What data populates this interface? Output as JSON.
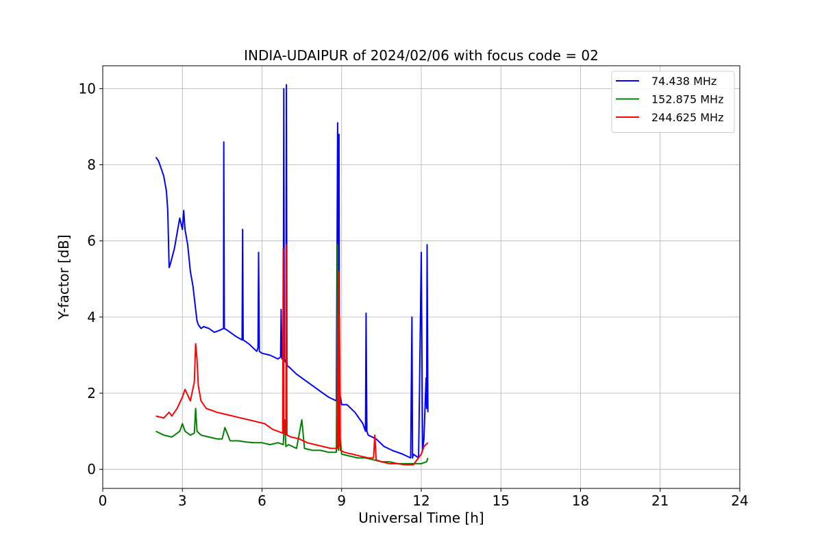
{
  "chart_data": {
    "type": "line",
    "title": "INDIA-UDAIPUR of 2024/02/06 with focus code = 02",
    "xlabel": "Universal Time [h]",
    "ylabel": "Y-factor [dB]",
    "xlim": [
      0,
      24
    ],
    "ylim": [
      -0.5,
      10.6
    ],
    "x_ticks": [
      0,
      3,
      6,
      9,
      12,
      15,
      18,
      21,
      24
    ],
    "y_ticks": [
      0,
      2,
      4,
      6,
      8,
      10
    ],
    "grid": true,
    "legend_position": "top-right",
    "series": [
      {
        "name": " 74.438 MHz",
        "color": "#0000ff",
        "x": [
          2.0,
          2.1,
          2.2,
          2.3,
          2.4,
          2.45,
          2.5,
          2.55,
          2.7,
          2.8,
          2.9,
          3.0,
          3.05,
          3.1,
          3.2,
          3.3,
          3.4,
          3.5,
          3.55,
          3.6,
          3.7,
          3.8,
          4.0,
          4.2,
          4.4,
          4.55,
          4.56,
          4.58,
          4.7,
          5.0,
          5.25,
          5.27,
          5.29,
          5.5,
          5.8,
          5.85,
          5.87,
          5.9,
          6.0,
          6.3,
          6.6,
          6.7,
          6.72,
          6.75,
          6.8,
          6.82,
          6.84,
          6.86,
          6.9,
          6.92,
          6.94,
          6.96,
          7.0,
          7.3,
          7.6,
          7.9,
          8.2,
          8.5,
          8.8,
          8.85,
          8.88,
          8.9,
          8.92,
          8.95,
          9.0,
          9.2,
          9.5,
          9.8,
          9.9,
          9.92,
          9.95,
          10.0,
          10.3,
          10.6,
          10.9,
          11.3,
          11.6,
          11.65,
          11.67,
          11.7,
          11.9,
          12.0,
          12.05,
          12.1,
          12.15,
          12.18,
          12.2,
          12.22,
          12.25
        ],
        "y": [
          8.2,
          8.1,
          7.9,
          7.7,
          7.3,
          6.8,
          5.3,
          5.4,
          5.8,
          6.2,
          6.6,
          6.3,
          6.8,
          6.3,
          5.9,
          5.2,
          4.8,
          4.2,
          3.9,
          3.8,
          3.7,
          3.75,
          3.7,
          3.6,
          3.65,
          3.7,
          8.6,
          3.7,
          3.65,
          3.5,
          3.4,
          6.3,
          3.4,
          3.3,
          3.1,
          3.2,
          5.7,
          3.1,
          3.05,
          3.0,
          2.9,
          2.95,
          4.2,
          2.9,
          2.9,
          10.0,
          2.9,
          2.85,
          2.8,
          10.1,
          2.8,
          2.7,
          2.7,
          2.5,
          2.35,
          2.2,
          2.05,
          1.9,
          1.8,
          9.1,
          2.0,
          8.8,
          2.2,
          1.9,
          1.7,
          1.7,
          1.5,
          1.2,
          1.0,
          4.1,
          1.0,
          0.9,
          0.8,
          0.6,
          0.5,
          0.4,
          0.3,
          4.0,
          0.3,
          0.4,
          0.3,
          5.7,
          0.5,
          0.8,
          1.8,
          2.4,
          1.6,
          5.9,
          1.5
        ]
      },
      {
        "name": "152.875 MHz",
        "color": "#008000",
        "x": [
          2.0,
          2.3,
          2.6,
          2.9,
          3.0,
          3.1,
          3.3,
          3.45,
          3.5,
          3.55,
          3.7,
          4.0,
          4.3,
          4.5,
          4.6,
          4.8,
          5.1,
          5.4,
          5.7,
          6.0,
          6.3,
          6.6,
          6.8,
          6.85,
          6.9,
          7.0,
          7.3,
          7.5,
          7.6,
          7.9,
          8.2,
          8.5,
          8.8,
          8.85,
          8.88,
          8.92,
          9.0,
          9.3,
          9.6,
          9.9,
          10.2,
          10.5,
          10.8,
          11.1,
          11.4,
          11.7,
          12.0,
          12.2,
          12.25
        ],
        "y": [
          1.0,
          0.9,
          0.85,
          1.0,
          1.2,
          1.0,
          0.9,
          0.95,
          1.6,
          1.0,
          0.9,
          0.85,
          0.8,
          0.8,
          1.1,
          0.75,
          0.75,
          0.72,
          0.7,
          0.7,
          0.65,
          0.7,
          0.65,
          1.3,
          0.6,
          0.65,
          0.55,
          1.3,
          0.55,
          0.5,
          0.5,
          0.45,
          0.45,
          5.9,
          0.5,
          1.0,
          0.4,
          0.35,
          0.3,
          0.3,
          0.25,
          0.2,
          0.2,
          0.15,
          0.15,
          0.15,
          0.15,
          0.2,
          0.3
        ]
      },
      {
        "name": "244.625 MHz",
        "color": "#ff0000",
        "x": [
          2.0,
          2.3,
          2.5,
          2.6,
          2.8,
          3.0,
          3.1,
          3.3,
          3.45,
          3.5,
          3.55,
          3.6,
          3.7,
          3.9,
          4.1,
          4.3,
          4.6,
          4.9,
          5.2,
          5.5,
          5.8,
          6.1,
          6.4,
          6.6,
          6.78,
          6.8,
          6.82,
          6.9,
          6.92,
          6.94,
          7.1,
          7.4,
          7.7,
          8.0,
          8.3,
          8.6,
          8.85,
          8.88,
          8.9,
          8.92,
          8.95,
          9.1,
          9.4,
          9.7,
          10.0,
          10.2,
          10.25,
          10.3,
          10.5,
          10.8,
          11.1,
          11.4,
          11.7,
          12.0,
          12.1,
          12.25
        ],
        "y": [
          1.4,
          1.35,
          1.5,
          1.4,
          1.6,
          1.9,
          2.1,
          1.8,
          2.3,
          3.3,
          2.9,
          2.2,
          1.8,
          1.6,
          1.55,
          1.5,
          1.45,
          1.4,
          1.35,
          1.3,
          1.25,
          1.2,
          1.05,
          1.0,
          0.95,
          5.8,
          1.0,
          0.9,
          5.9,
          0.9,
          0.85,
          0.8,
          0.7,
          0.65,
          0.6,
          0.55,
          0.55,
          5.2,
          0.6,
          4.0,
          0.5,
          0.45,
          0.4,
          0.35,
          0.3,
          0.3,
          0.9,
          0.25,
          0.2,
          0.15,
          0.15,
          0.12,
          0.12,
          0.4,
          0.6,
          0.7
        ]
      }
    ]
  }
}
